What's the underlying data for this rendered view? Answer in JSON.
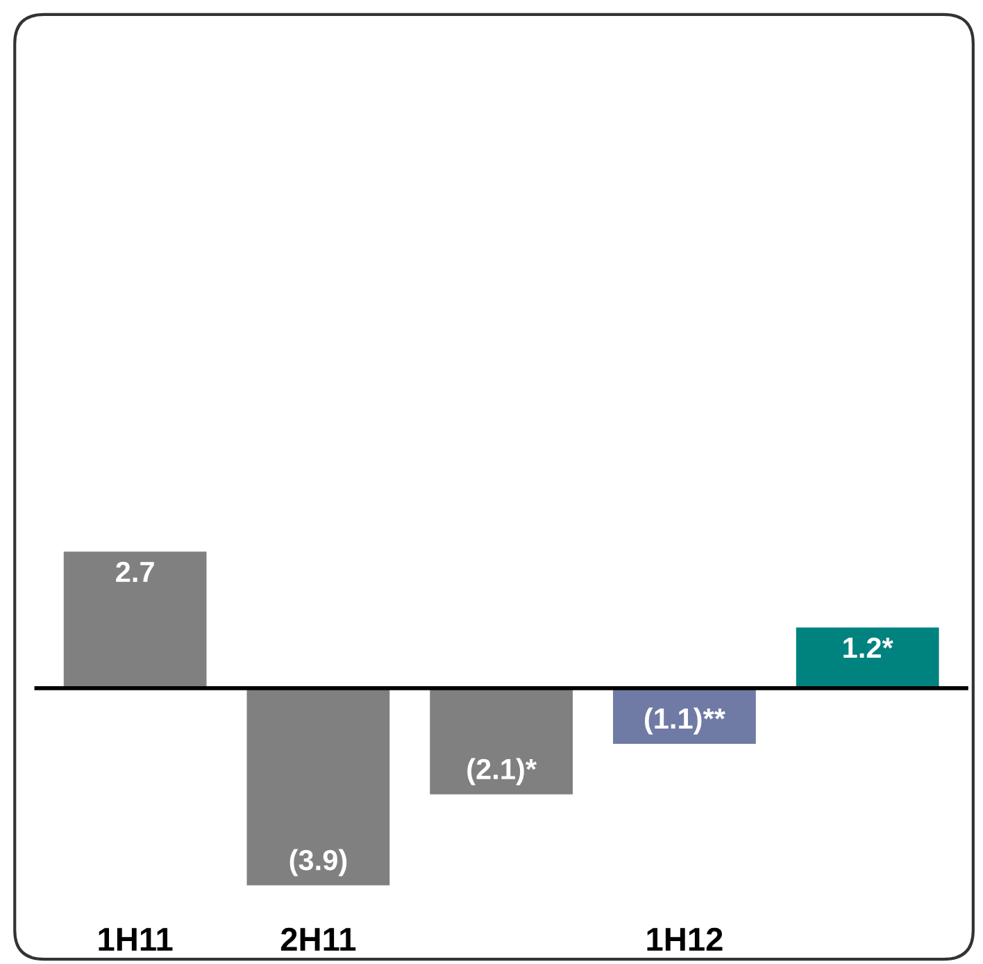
{
  "chart_data": {
    "type": "bar",
    "categories": [
      "1H11",
      "2H11",
      null,
      "1H12",
      null
    ],
    "values": [
      2.7,
      -3.9,
      -2.1,
      -1.1,
      1.2
    ],
    "colors": [
      "#808080",
      "#808080",
      "#808080",
      "#6f7aa5",
      "#00827f"
    ],
    "value_labels": [
      "2.7",
      "(3.9)",
      "(2.1)*",
      "(1.1)**",
      "1.2*"
    ]
  }
}
